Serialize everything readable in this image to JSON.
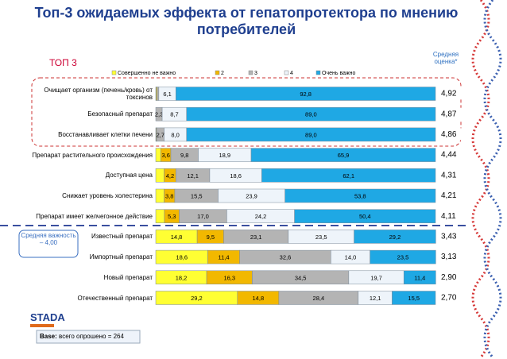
{
  "title": "Топ-3 ожидаемых эффекта от гепатопротектора по мнению потребителей",
  "top3_label": "ТОП 3",
  "score_header": "Средняя оценка*",
  "average_note": "Средняя важность – 4,00",
  "logo": "STADA",
  "base": {
    "key": "Base:",
    "text": "всего опрошено = 264"
  },
  "chart_data": {
    "type": "stacked-bar-horizontal",
    "categories": [
      "Очищает организм (печень/кровь) от токсинов",
      "Безопасный препарат",
      "Восстанавливает клетки печени",
      "Препарат растительного происхождения",
      "Доступная цена",
      "Снижает уровень холестерина",
      "Препарат имеет желчегонное действие",
      "Известный препарат",
      "Импортный препарат",
      "Новый препарат",
      "Отечественный препарат"
    ],
    "xlim": [
      0,
      100
    ],
    "series": [
      {
        "name": "Совершенно не важно",
        "color": "#ffff33",
        "values": [
          0.2,
          0,
          0.1,
          1.8,
          3.0,
          3.0,
          3.1,
          14.8,
          18.6,
          18.2,
          29.2
        ],
        "value_labels": [
          null,
          null,
          null,
          null,
          null,
          null,
          null,
          "14,8",
          "18,6",
          "18,2",
          "29,2"
        ]
      },
      {
        "name": "2",
        "color": "#f2b800",
        "values": [
          0.3,
          0,
          0.2,
          3.6,
          4.2,
          3.8,
          5.3,
          9.5,
          11.4,
          16.3,
          14.8
        ],
        "value_labels": [
          null,
          null,
          null,
          "3,6",
          "4,2",
          "3,8",
          "5,3",
          "9,5",
          "11,4",
          "16,3",
          "14,8"
        ]
      },
      {
        "name": "3",
        "color": "#b4b4b4",
        "values": [
          0.6,
          2.3,
          2.7,
          9.8,
          12.1,
          15.5,
          17.0,
          23.1,
          32.6,
          34.5,
          28.4
        ],
        "value_labels": [
          null,
          "2,3",
          "2,7",
          "9,8",
          "12,1",
          "15,5",
          "17,0",
          "23,1",
          "32,6",
          "34,5",
          "28,4"
        ]
      },
      {
        "name": "4",
        "color": "#eef4fa",
        "values": [
          6.1,
          8.7,
          8.0,
          18.9,
          18.6,
          23.9,
          24.2,
          23.5,
          14.0,
          19.7,
          12.1
        ],
        "value_labels": [
          "6,1",
          "8,7",
          "8,0",
          "18,9",
          "18,6",
          "23,9",
          "24,2",
          "23,5",
          "14,0",
          "19,7",
          "12,1"
        ]
      },
      {
        "name": "Очень важно",
        "color": "#1fa8e4",
        "values": [
          92.8,
          89.0,
          89.0,
          65.9,
          62.1,
          53.8,
          50.4,
          29.2,
          23.5,
          11.4,
          15.5
        ],
        "value_labels": [
          "92,8",
          "89,0",
          "89,0",
          "65,9",
          "62,1",
          "53,8",
          "50,4",
          "29,2",
          "23,5",
          "11,4",
          "15,5"
        ]
      }
    ],
    "scores": [
      4.92,
      4.87,
      4.86,
      4.44,
      4.31,
      4.21,
      4.11,
      3.43,
      3.13,
      2.9,
      2.7
    ],
    "score_labels": [
      "4,92",
      "4,87",
      "4,86",
      "4,44",
      "4,31",
      "4,21",
      "4,11",
      "3,43",
      "3,13",
      "2,90",
      "2,70"
    ]
  }
}
